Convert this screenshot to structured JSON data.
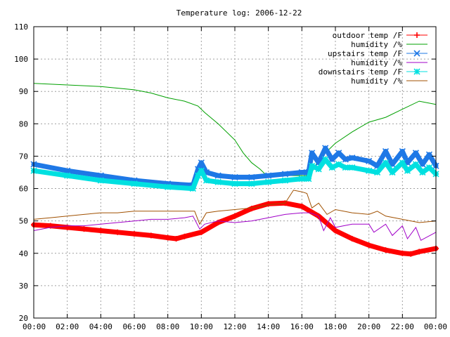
{
  "chart_data": {
    "type": "line",
    "title": "Temperature log: 2006-12-22",
    "xlabel": "",
    "ylabel": "",
    "xlim": [
      0,
      24
    ],
    "ylim": [
      20,
      110
    ],
    "grid": true,
    "legend_position": "top-right",
    "x_tick_labels": [
      "00:00",
      "02:00",
      "04:00",
      "06:00",
      "08:00",
      "10:00",
      "12:00",
      "14:00",
      "16:00",
      "18:00",
      "20:00",
      "22:00",
      "00:00"
    ],
    "y_tick_labels": [
      "20",
      "30",
      "40",
      "50",
      "60",
      "70",
      "80",
      "90",
      "100",
      "110"
    ],
    "series": [
      {
        "name": "outdoor temp /F",
        "color": "#ff0000",
        "marker": "plus",
        "x": [
          0,
          1,
          2,
          3,
          4,
          5,
          6,
          7,
          8,
          8.5,
          9,
          10,
          11,
          12,
          13,
          14,
          15,
          16,
          17,
          18,
          19,
          20,
          21,
          22,
          22.5,
          23,
          24
        ],
        "y": [
          48.8,
          48.5,
          48.0,
          47.5,
          47.0,
          46.5,
          46.0,
          45.5,
          44.8,
          44.5,
          45.2,
          46.5,
          49.5,
          51.5,
          53.8,
          55.3,
          55.5,
          54.5,
          51.5,
          47.0,
          44.5,
          42.5,
          41.0,
          40.0,
          39.8,
          40.5,
          41.5
        ]
      },
      {
        "name": "humidity /%",
        "color": "#00a000",
        "marker": "none",
        "x": [
          0,
          2,
          4,
          6,
          7,
          8,
          9,
          9.8,
          10.2,
          11,
          12,
          12.5,
          13,
          13.5,
          13.9,
          16.5,
          17,
          18,
          19,
          20,
          21,
          22,
          23,
          24
        ],
        "y": [
          92.5,
          92.0,
          91.5,
          90.5,
          89.5,
          88.0,
          87.0,
          85.5,
          83.5,
          80.0,
          75.0,
          71.0,
          68.0,
          66.0,
          64.0,
          64.0,
          69.0,
          74.0,
          77.5,
          80.5,
          82.0,
          84.5,
          87.0,
          86.0
        ]
      },
      {
        "name": "upstairs temp /F",
        "color": "#1e78e6",
        "marker": "x",
        "x": [
          0,
          2,
          4,
          6,
          8,
          9.5,
          9.8,
          10,
          10.3,
          11,
          12,
          13,
          14,
          15,
          16,
          16.4,
          16.6,
          17,
          17.4,
          17.8,
          18.2,
          18.6,
          19,
          20,
          20.5,
          21,
          21.4,
          22,
          22.3,
          22.8,
          23.2,
          23.6,
          24
        ],
        "y": [
          67.5,
          65.5,
          64.0,
          62.5,
          61.5,
          61.0,
          66.0,
          68.0,
          65.0,
          64.0,
          63.5,
          63.5,
          64.0,
          64.5,
          65.0,
          65.0,
          71.0,
          68.0,
          72.5,
          69.0,
          71.0,
          69.0,
          69.5,
          68.5,
          67.0,
          71.5,
          67.5,
          71.5,
          68.0,
          71.0,
          67.5,
          70.5,
          67.0
        ]
      },
      {
        "name": "humidity /%",
        "color": "#a000c8",
        "marker": "none",
        "x": [
          0,
          1,
          2,
          3,
          4,
          5,
          6,
          7,
          8,
          9,
          9.5,
          9.9,
          10.2,
          11,
          12,
          13,
          14,
          15,
          16,
          16.5,
          17,
          17.3,
          17.7,
          18,
          19,
          20,
          20.3,
          21,
          21.4,
          22,
          22.3,
          22.8,
          23.1,
          24
        ],
        "y": [
          47.0,
          48.0,
          48.5,
          48.5,
          49.0,
          49.5,
          50.0,
          50.5,
          50.5,
          51.0,
          51.5,
          47.5,
          49.0,
          50.0,
          49.5,
          50.0,
          51.0,
          52.0,
          52.5,
          52.5,
          51.5,
          47.0,
          51.0,
          48.0,
          49.0,
          49.0,
          46.5,
          49.0,
          45.5,
          48.5,
          44.5,
          48.0,
          44.0,
          46.5
        ]
      },
      {
        "name": "downstairs temp /F",
        "color": "#00e0e0",
        "marker": "star",
        "x": [
          0,
          2,
          4,
          6,
          8,
          9.5,
          9.8,
          10,
          10.3,
          11,
          12,
          13,
          14,
          15,
          16,
          16.4,
          16.6,
          17,
          17.4,
          17.8,
          18.2,
          18.6,
          19,
          20,
          20.5,
          21,
          21.4,
          22,
          22.3,
          22.8,
          23.2,
          23.6,
          24
        ],
        "y": [
          65.5,
          64.0,
          62.5,
          61.5,
          60.5,
          60.0,
          64.0,
          65.5,
          62.5,
          62.0,
          61.5,
          61.5,
          62.0,
          62.5,
          63.0,
          63.0,
          67.0,
          66.0,
          69.0,
          66.5,
          67.5,
          66.5,
          66.5,
          65.5,
          65.0,
          68.0,
          65.0,
          68.0,
          65.5,
          67.5,
          65.0,
          66.5,
          64.5
        ]
      },
      {
        "name": "humidity /%",
        "color": "#a05000",
        "marker": "none",
        "x": [
          0,
          1,
          2,
          3,
          4,
          5,
          6,
          7,
          8,
          9,
          9.6,
          9.9,
          10.3,
          11,
          12,
          13,
          14,
          15,
          15.5,
          16,
          16.3,
          16.6,
          17,
          17.5,
          18,
          19,
          20,
          20.5,
          21,
          22,
          23,
          24
        ],
        "y": [
          50.5,
          51.0,
          51.5,
          52.0,
          52.5,
          52.5,
          53.0,
          53.0,
          53.0,
          53.0,
          53.0,
          49.0,
          52.5,
          53.0,
          53.5,
          54.0,
          55.0,
          55.5,
          59.5,
          59.0,
          58.5,
          54.0,
          55.5,
          52.0,
          53.5,
          52.5,
          52.0,
          53.0,
          51.5,
          50.5,
          49.5,
          50.0
        ]
      }
    ]
  }
}
